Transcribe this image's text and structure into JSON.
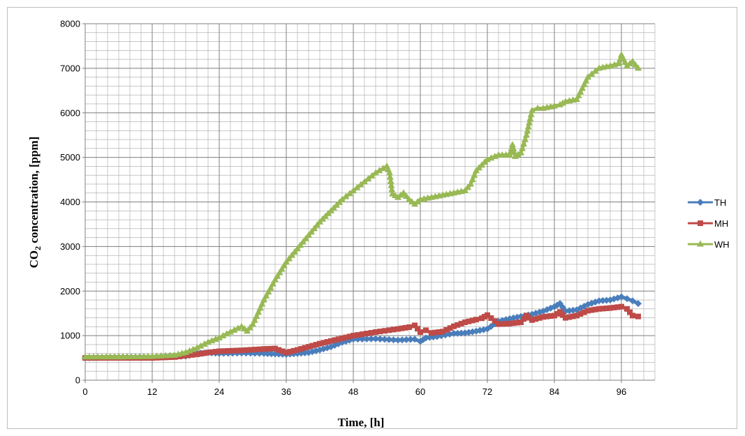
{
  "chart_data": {
    "type": "line",
    "title": "",
    "xlabel": "Time, [h]",
    "ylabel_main": "CO",
    "ylabel_sub": "2",
    "ylabel_rest": " concentration, [ppm]",
    "xlim": [
      0,
      102
    ],
    "ylim": [
      0,
      8000
    ],
    "x_ticks": [
      "0",
      "12",
      "24",
      "36",
      "48",
      "60",
      "72",
      "84",
      "96"
    ],
    "y_ticks": [
      "0",
      "1000",
      "2000",
      "3000",
      "4000",
      "5000",
      "6000",
      "7000",
      "8000"
    ],
    "x_tick_values": [
      0,
      12,
      24,
      36,
      48,
      60,
      72,
      84,
      96
    ],
    "y_tick_values": [
      0,
      1000,
      2000,
      3000,
      4000,
      5000,
      6000,
      7000,
      8000
    ],
    "grid": true,
    "legend_position": "right",
    "series": [
      {
        "name": "TH",
        "color": "#4a7ebb",
        "marker": "diamond",
        "x": [
          0,
          6,
          12,
          18,
          20,
          22,
          24,
          28,
          32,
          34,
          36,
          38,
          40,
          42,
          44,
          46,
          48,
          52,
          56,
          59,
          60,
          61,
          63,
          66,
          68,
          70,
          72,
          74,
          76,
          78,
          80,
          82,
          84,
          85,
          86,
          88,
          90,
          92,
          94,
          96,
          97,
          98,
          99
        ],
        "y": [
          500,
          520,
          520,
          540,
          600,
          620,
          600,
          610,
          600,
          590,
          580,
          600,
          620,
          680,
          750,
          850,
          920,
          930,
          900,
          920,
          870,
          950,
          980,
          1050,
          1060,
          1100,
          1150,
          1320,
          1380,
          1430,
          1480,
          1550,
          1650,
          1720,
          1550,
          1580,
          1700,
          1780,
          1800,
          1870,
          1830,
          1780,
          1720
        ]
      },
      {
        "name": "MH",
        "color": "#be4b48",
        "marker": "square",
        "x": [
          0,
          6,
          12,
          16,
          20,
          22,
          24,
          28,
          32,
          34,
          36,
          38,
          40,
          42,
          44,
          46,
          48,
          52,
          56,
          58,
          59,
          60,
          61,
          62,
          64,
          66,
          68,
          70,
          71,
          72,
          74,
          76,
          78,
          79,
          80,
          82,
          84,
          85,
          86,
          88,
          90,
          92,
          94,
          96,
          97,
          98,
          99
        ],
        "y": [
          500,
          500,
          500,
          520,
          580,
          620,
          650,
          670,
          700,
          710,
          620,
          680,
          750,
          820,
          880,
          940,
          1000,
          1080,
          1150,
          1190,
          1230,
          1080,
          1120,
          1060,
          1090,
          1210,
          1300,
          1360,
          1390,
          1460,
          1260,
          1270,
          1300,
          1450,
          1350,
          1420,
          1450,
          1530,
          1400,
          1450,
          1560,
          1600,
          1620,
          1650,
          1600,
          1450,
          1430
        ]
      },
      {
        "name": "WH",
        "color": "#98b954",
        "marker": "triangle",
        "x": [
          0,
          6,
          12,
          16,
          18,
          20,
          22,
          24,
          26,
          28,
          29,
          30,
          32,
          34,
          36,
          38,
          40,
          42,
          44,
          46,
          48,
          50,
          52,
          54,
          54.5,
          55,
          56,
          57,
          58,
          59,
          60,
          62,
          64,
          66,
          68,
          69,
          70,
          72,
          74,
          76,
          76.5,
          77,
          78,
          79,
          80,
          81,
          82,
          84,
          85,
          86,
          88,
          89,
          90,
          92,
          94,
          95.5,
          96,
          97,
          98,
          99
        ],
        "y": [
          520,
          520,
          530,
          560,
          620,
          720,
          850,
          950,
          1080,
          1200,
          1100,
          1250,
          1800,
          2250,
          2650,
          2950,
          3250,
          3550,
          3800,
          4050,
          4250,
          4450,
          4650,
          4800,
          4650,
          4180,
          4100,
          4200,
          4050,
          3950,
          4050,
          4100,
          4150,
          4200,
          4250,
          4400,
          4700,
          4950,
          5050,
          5050,
          5280,
          5020,
          5100,
          5500,
          6050,
          6100,
          6100,
          6150,
          6180,
          6250,
          6300,
          6550,
          6800,
          7000,
          7050,
          7100,
          7300,
          7050,
          7150,
          7000
        ]
      }
    ]
  }
}
